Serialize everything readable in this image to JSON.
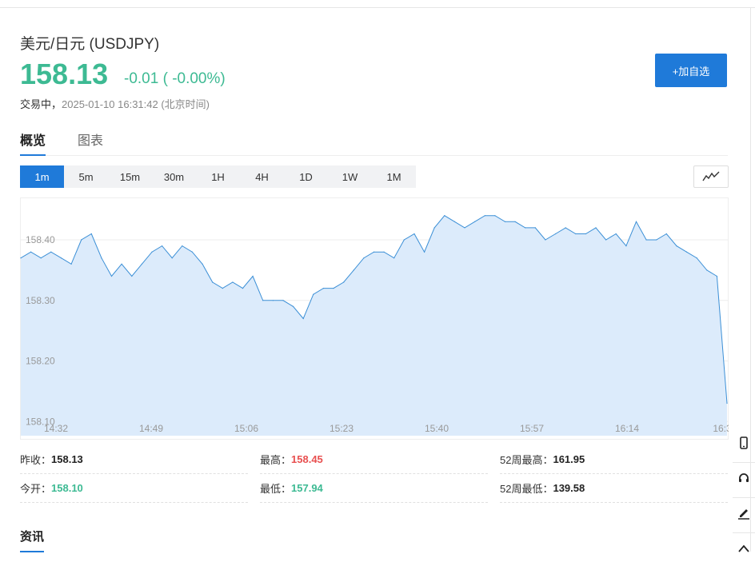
{
  "header": {
    "title": "美元/日元  (USDJPY)",
    "price": "158.13",
    "change": "-0.01 ( -0.00%)",
    "status_label": "交易中，",
    "timestamp": "2025-01-10 16:31:42 (北京时间)",
    "watch_button": "+加自选"
  },
  "tabs": [
    {
      "label": "概览",
      "active": true
    },
    {
      "label": "图表",
      "active": false
    }
  ],
  "ranges": [
    {
      "label": "1m",
      "active": true
    },
    {
      "label": "5m",
      "active": false
    },
    {
      "label": "15m",
      "active": false
    },
    {
      "label": "30m",
      "active": false
    },
    {
      "label": "1H",
      "active": false
    },
    {
      "label": "4H",
      "active": false
    },
    {
      "label": "1D",
      "active": false
    },
    {
      "label": "1W",
      "active": false
    },
    {
      "label": "1M",
      "active": false
    }
  ],
  "chart_type_icon": "line-chart-icon",
  "chart_data": {
    "type": "area",
    "x_tick_labels": [
      "14:32",
      "14:49",
      "15:06",
      "15:23",
      "15:40",
      "15:57",
      "16:14",
      "16:3"
    ],
    "y_ticks": [
      158.4,
      158.3,
      158.2,
      158.1
    ],
    "y_tick_labels": [
      "158.40",
      "158.30",
      "158.20",
      "158.10"
    ],
    "ylim": [
      158.07,
      158.47
    ],
    "grid": true,
    "colors": {
      "line": "#3b8fd6",
      "fill": "#dcebfb",
      "grid": "#eeeeee"
    },
    "series": [
      {
        "x_minutes": [
          0,
          2,
          4,
          6,
          8,
          10,
          12,
          14,
          16,
          18,
          20,
          22,
          24,
          26,
          28,
          30,
          32,
          34,
          36,
          38,
          40,
          42,
          44,
          46,
          48,
          50,
          52,
          54,
          56,
          58,
          60,
          62,
          64,
          66,
          68,
          70,
          72,
          74,
          76,
          78,
          80,
          82,
          84,
          86,
          88,
          90,
          92,
          94,
          96,
          98,
          100,
          102,
          104,
          106,
          108,
          110,
          112,
          114,
          116,
          118,
          120,
          122,
          124,
          126,
          128,
          130,
          132,
          134,
          136,
          138,
          140
        ],
        "values": [
          158.37,
          158.38,
          158.37,
          158.38,
          158.37,
          158.36,
          158.4,
          158.41,
          158.37,
          158.34,
          158.36,
          158.34,
          158.36,
          158.38,
          158.39,
          158.37,
          158.39,
          158.38,
          158.36,
          158.33,
          158.32,
          158.33,
          158.32,
          158.34,
          158.3,
          158.3,
          158.3,
          158.29,
          158.27,
          158.31,
          158.32,
          158.32,
          158.33,
          158.35,
          158.37,
          158.38,
          158.38,
          158.37,
          158.4,
          158.41,
          158.38,
          158.42,
          158.44,
          158.43,
          158.42,
          158.43,
          158.44,
          158.44,
          158.43,
          158.43,
          158.42,
          158.42,
          158.4,
          158.41,
          158.42,
          158.41,
          158.41,
          158.42,
          158.4,
          158.41,
          158.39,
          158.43,
          158.4,
          158.4,
          158.41,
          158.39,
          158.38,
          158.37,
          158.35,
          158.34,
          158.13
        ]
      }
    ]
  },
  "stats": [
    {
      "label": "昨收：",
      "value": "158.13",
      "color": "#222222"
    },
    {
      "label": "最高：",
      "value": "158.45",
      "color": "#e85050"
    },
    {
      "label": "52周最高：",
      "value": "161.95",
      "color": "#222222"
    },
    {
      "label": "今开：",
      "value": "158.10",
      "color": "#3dba93"
    },
    {
      "label": "最低：",
      "value": "157.94",
      "color": "#3dba93"
    },
    {
      "label": "52周最低：",
      "value": "139.58",
      "color": "#222222"
    }
  ],
  "news_tab": "资讯",
  "side_tools": [
    "mobile-icon",
    "headset-icon",
    "edit-icon",
    "back-to-top-icon"
  ],
  "colors": {
    "accent": "#1f7ad9",
    "up": "#e85050",
    "down": "#3dba93"
  }
}
